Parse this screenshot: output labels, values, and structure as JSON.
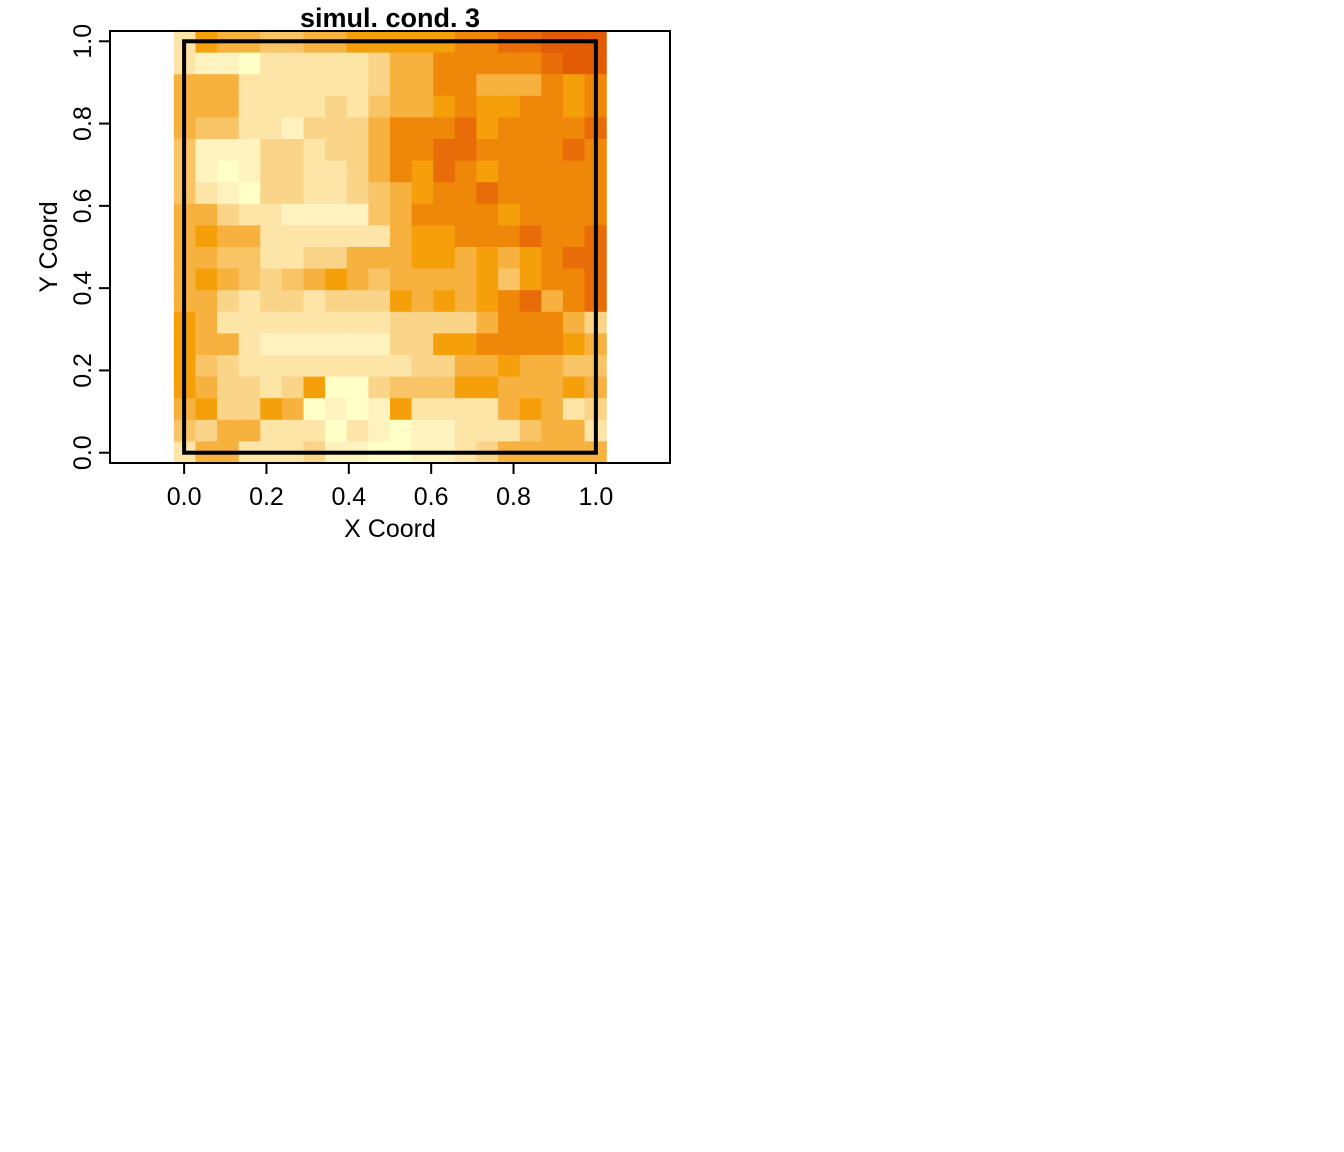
{
  "chart_data": {
    "type": "heatmap",
    "title": "simul. cond. 3",
    "xlabel": "X Coord",
    "ylabel": "Y Coord",
    "xlim": [
      -0.18,
      1.18
    ],
    "ylim": [
      -0.025,
      1.025
    ],
    "xticks": [
      "0.0",
      "0.2",
      "0.4",
      "0.6",
      "0.8",
      "1.0"
    ],
    "yticks": [
      "0.0",
      "0.2",
      "0.4",
      "0.6",
      "0.8",
      "1.0"
    ],
    "grid": false,
    "legend": "none",
    "cell_range": [
      -0.025,
      1.025
    ],
    "cells_per_side": 20,
    "domain_box": [
      0,
      0,
      1,
      1
    ],
    "palette": [
      "#FFFFC8",
      "#FEF2BE",
      "#FCE5A6",
      "#FAD488",
      "#F9C466",
      "#F6B13E",
      "#F5A00A",
      "#EF8708",
      "#E86C07",
      "#E25B05"
    ],
    "rows_top_to_bottom": [
      "26554455666667788999",
      "21102222235577777899",
      "55522222235577555767",
      "55522223245567667767",
      "54422133357778677778",
      "41113323357788777787",
      "41013322357687677777",
      "42103322345677877777",
      "55322111145777767777",
      "56552222225667778778",
      "55442233555665656788",
      "56543456545555646778",
      "55323323336565678578",
      "65222222223333577753",
      "65521111113366777765",
      "64322222222335565544",
      "65332360034446655565",
      "56336501016222256523",
      "43552220210112224552",
      "25522231100112355555"
    ]
  }
}
